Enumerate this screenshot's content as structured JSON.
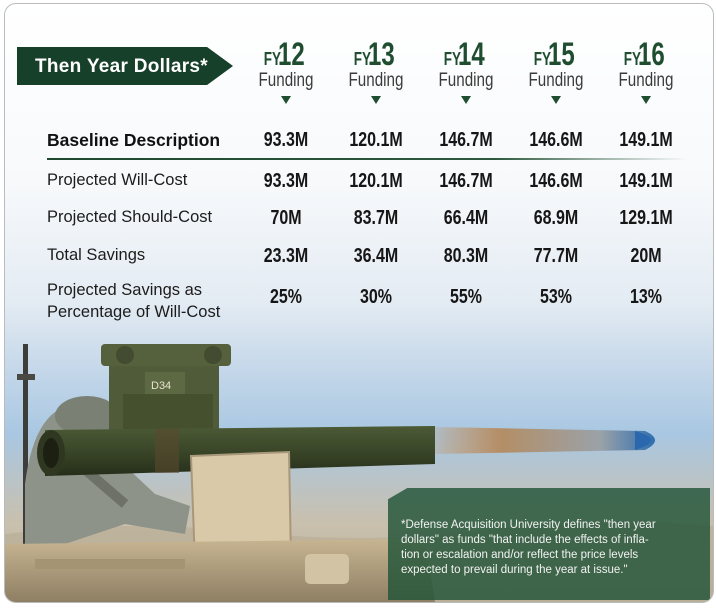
{
  "header": {
    "title": "Then Year Dollars*",
    "fy_prefix": "FY",
    "funding_label": "Funding",
    "years": [
      "12",
      "13",
      "14",
      "15",
      "16"
    ]
  },
  "chart_data": {
    "type": "table",
    "columns": [
      "FY12 Funding",
      "FY13 Funding",
      "FY14 Funding",
      "FY15 Funding",
      "FY16 Funding"
    ],
    "rows": [
      {
        "label": "Baseline Description",
        "values": [
          "93.3M",
          "120.1M",
          "146.7M",
          "146.6M",
          "149.1M"
        ]
      },
      {
        "label": "Projected Will-Cost",
        "values": [
          "93.3M",
          "120.1M",
          "146.7M",
          "146.6M",
          "149.1M"
        ]
      },
      {
        "label": "Projected Should-Cost",
        "values": [
          "70M",
          "83.7M",
          "66.4M",
          "68.9M",
          "129.1M"
        ]
      },
      {
        "label": "Total Savings",
        "values": [
          "23.3M",
          "36.4M",
          "80.3M",
          "77.7M",
          "20M"
        ]
      },
      {
        "label_line1": "Projected Savings as",
        "label_line2": "Percentage of Will-Cost",
        "values": [
          "25%",
          "30%",
          "55%",
          "53%",
          "13%"
        ]
      }
    ]
  },
  "footnote": {
    "line1": "*Defense Acquisition University defines \"then year",
    "line2": "dollars\" as funds \"that include the effects of infla-",
    "line3": "tion or escalation and/or reflect the price levels",
    "line4": "expected to prevail during the year at issue.\""
  },
  "photo": {
    "subject": "missile-launcher",
    "marking": "D34",
    "colors": {
      "banner": "#16402a",
      "accent": "#1f4d30",
      "note_box": "#225438"
    }
  }
}
